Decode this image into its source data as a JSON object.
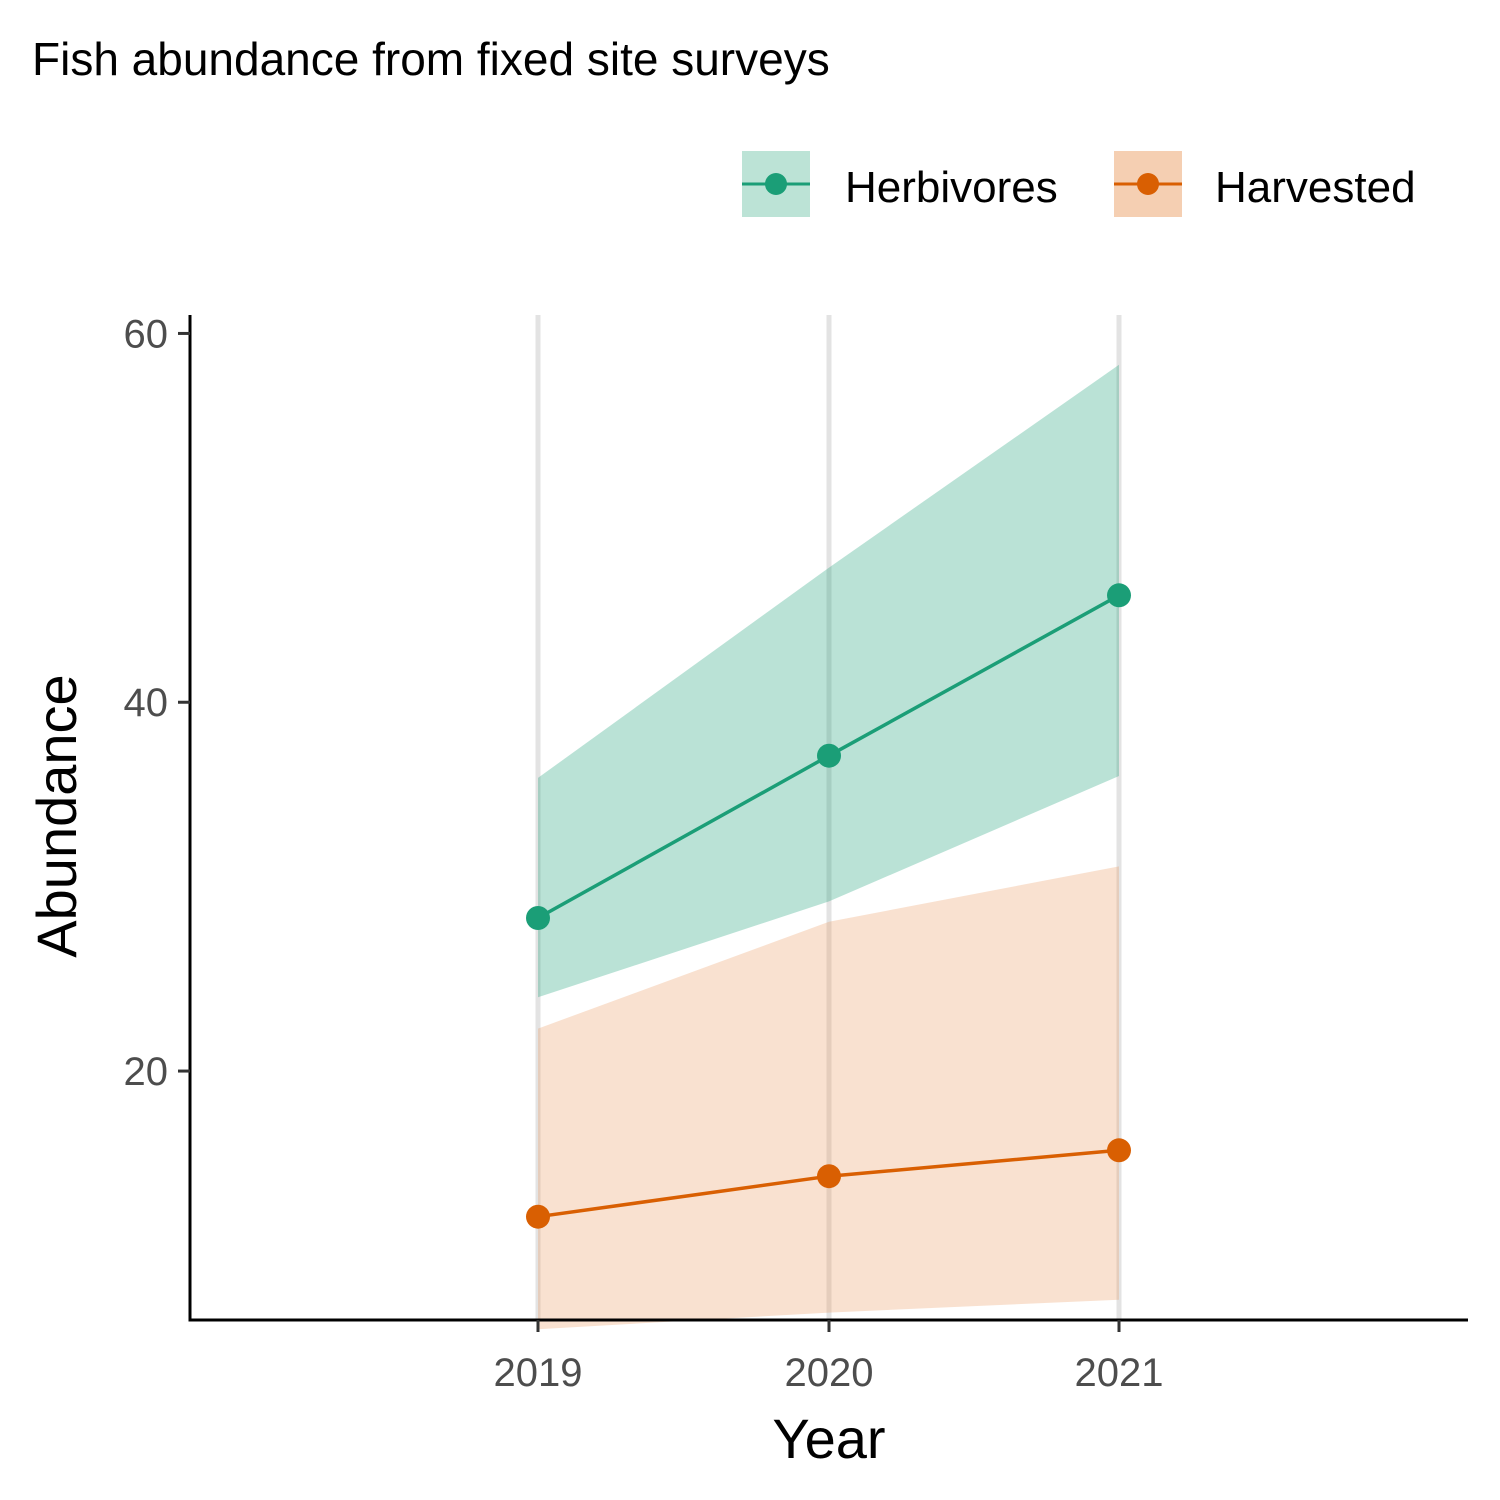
{
  "chart_data": {
    "type": "line",
    "title": "Fish abundance from fixed site surveys",
    "xlabel": "Year",
    "ylabel": "Abundance",
    "x": [
      "2019",
      "2020",
      "2021"
    ],
    "ylim": [
      6.5,
      61
    ],
    "yticks": [
      "20",
      "40",
      "60"
    ],
    "grid": "vertical major gridlines only",
    "legend_position": "top-right",
    "series": [
      {
        "name": "Herbivores",
        "color": "#1b9e77",
        "ribbon_color": "#1b9e77",
        "values": [
          28.3,
          37.1,
          45.8
        ],
        "lower": [
          24.0,
          29.2,
          36.0
        ],
        "upper": [
          35.9,
          47.3,
          58.3
        ]
      },
      {
        "name": "Harvested",
        "color": "#d95f02",
        "ribbon_color": "#ec9c62",
        "values": [
          12.1,
          14.3,
          15.7
        ],
        "lower": [
          6.0,
          6.9,
          7.6
        ],
        "upper": [
          22.3,
          28.1,
          31.1
        ]
      }
    ]
  }
}
